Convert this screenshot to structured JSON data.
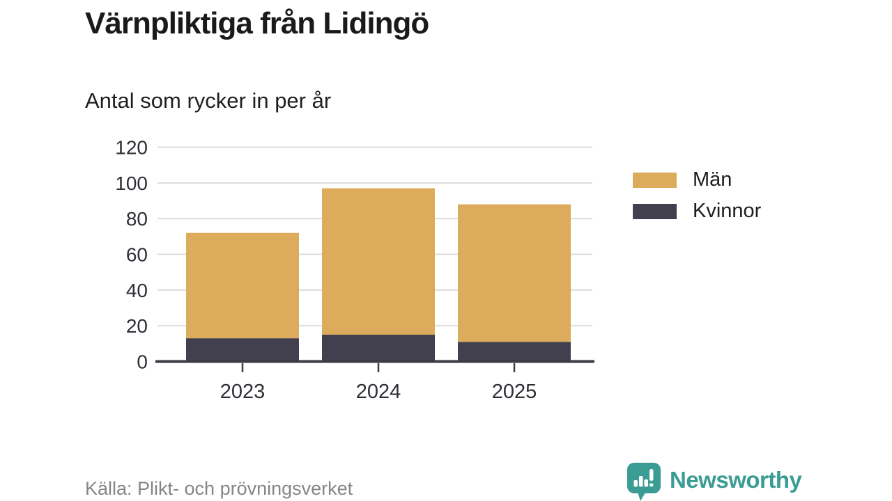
{
  "header": {
    "title": "Värnpliktiga från Lidingö",
    "subtitle": "Antal som rycker in per år"
  },
  "chart_data": {
    "type": "bar",
    "stacked": true,
    "title": "Värnpliktiga från Lidingö",
    "subtitle": "Antal som rycker in per år",
    "xlabel": "",
    "ylabel": "",
    "categories": [
      "2023",
      "2024",
      "2025"
    ],
    "series": [
      {
        "name": "Kvinnor",
        "color": "#42404E",
        "values": [
          13,
          15,
          11
        ]
      },
      {
        "name": "Män",
        "color": "#DCAC5C",
        "values": [
          59,
          82,
          77
        ]
      }
    ],
    "totals": [
      72,
      97,
      88
    ],
    "ylim": [
      0,
      120
    ],
    "ytick_step": 20,
    "yticks": [
      0,
      20,
      40,
      60,
      80,
      100,
      120
    ],
    "grid": true,
    "legend_position": "right"
  },
  "legend": {
    "items": [
      {
        "label": "Män",
        "color": "#DCAC5C"
      },
      {
        "label": "Kvinnor",
        "color": "#42404E"
      }
    ]
  },
  "footer": {
    "source": "Källa: Plikt- och prövningsverket",
    "brand": "Newsworthy",
    "brand_color": "#3B9C94"
  },
  "colors": {
    "background": "#FFFFFF",
    "title_text": "#1A1A1A",
    "tick_text": "#2E2E36",
    "gridline": "#DCDCDC",
    "axis": "#3C3A46",
    "source_text": "#85858A",
    "men_bar": "#DCAC5C",
    "women_bar": "#42404E",
    "brand_teal": "#3B9C94"
  }
}
